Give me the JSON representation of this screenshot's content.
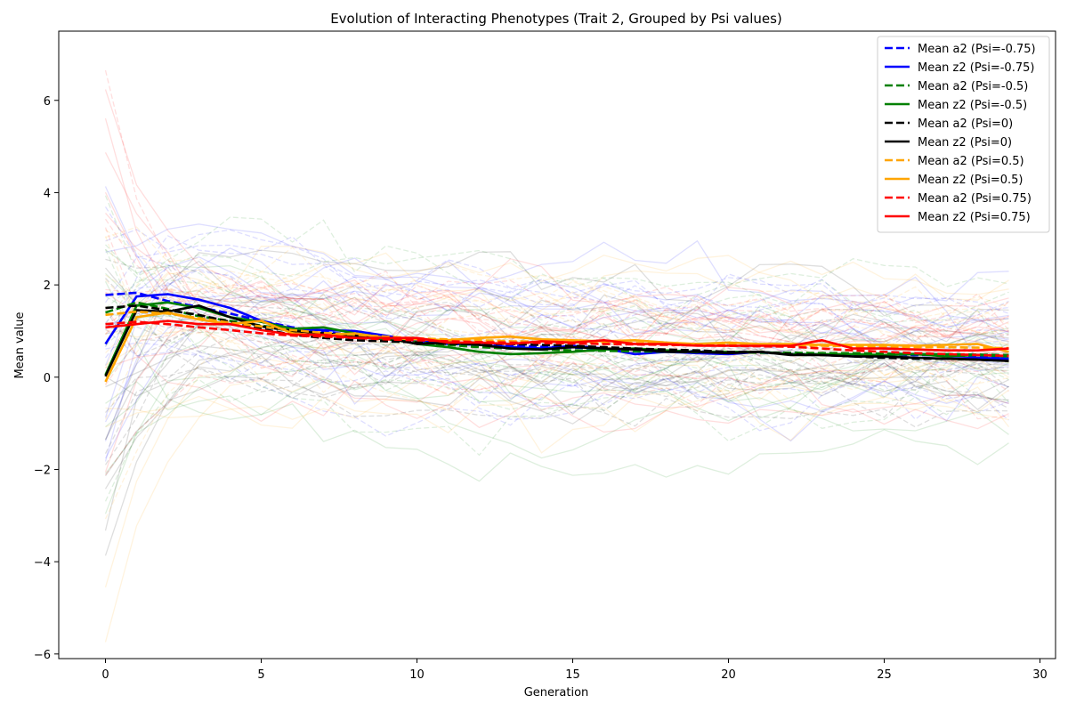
{
  "chart_data": {
    "type": "line",
    "title": "Evolution of Interacting Phenotypes (Trait 2, Grouped by Psi values)",
    "xlabel": "Generation",
    "ylabel": "Mean value",
    "xlim": [
      -1.5,
      30.5
    ],
    "ylim": [
      -6.1,
      7.5
    ],
    "xticks": [
      0,
      5,
      10,
      15,
      20,
      25,
      30
    ],
    "xtick_labels": [
      "0",
      "5",
      "10",
      "15",
      "20",
      "25",
      "30"
    ],
    "yticks": [
      -6,
      -4,
      -2,
      0,
      2,
      4,
      6
    ],
    "ytick_labels": [
      "−6",
      "−4",
      "−2",
      "0",
      "2",
      "4",
      "6"
    ],
    "grid": false,
    "legend_position": "top-right",
    "x": [
      0,
      1,
      2,
      3,
      4,
      5,
      6,
      7,
      8,
      9,
      10,
      11,
      12,
      13,
      14,
      15,
      16,
      17,
      18,
      19,
      20,
      21,
      22,
      23,
      24,
      25,
      26,
      27,
      28,
      29
    ],
    "series": [
      {
        "name": "Mean a2 (Psi=-0.75)",
        "color": "#0000ff",
        "style": "dashed",
        "values": [
          1.78,
          1.83,
          1.65,
          1.52,
          1.38,
          1.22,
          1.08,
          0.98,
          0.92,
          0.86,
          0.8,
          0.76,
          0.72,
          0.69,
          0.66,
          0.64,
          0.62,
          0.6,
          0.58,
          0.56,
          0.54,
          0.53,
          0.52,
          0.51,
          0.5,
          0.49,
          0.48,
          0.47,
          0.46,
          0.45
        ]
      },
      {
        "name": "Mean z2 (Psi=-0.75)",
        "color": "#0000ff",
        "style": "solid",
        "values": [
          0.72,
          1.75,
          1.8,
          1.68,
          1.5,
          1.22,
          1.05,
          1.02,
          1.0,
          0.9,
          0.78,
          0.72,
          0.7,
          0.65,
          0.62,
          0.68,
          0.62,
          0.5,
          0.55,
          0.52,
          0.5,
          0.55,
          0.5,
          0.5,
          0.45,
          0.45,
          0.42,
          0.4,
          0.42,
          0.4
        ]
      },
      {
        "name": "Mean a2 (Psi=-0.5)",
        "color": "#008000",
        "style": "dashed",
        "values": [
          1.4,
          1.62,
          1.48,
          1.32,
          1.22,
          1.12,
          1.02,
          0.95,
          0.88,
          0.82,
          0.76,
          0.7,
          0.65,
          0.62,
          0.6,
          0.58,
          0.57,
          0.56,
          0.55,
          0.54,
          0.54,
          0.53,
          0.53,
          0.52,
          0.52,
          0.51,
          0.5,
          0.5,
          0.49,
          0.48
        ]
      },
      {
        "name": "Mean z2 (Psi=-0.5)",
        "color": "#008000",
        "style": "solid",
        "values": [
          0.05,
          1.55,
          1.62,
          1.5,
          1.3,
          1.2,
          1.05,
          1.08,
          0.95,
          0.85,
          0.72,
          0.65,
          0.55,
          0.5,
          0.52,
          0.55,
          0.6,
          0.62,
          0.58,
          0.55,
          0.55,
          0.55,
          0.5,
          0.5,
          0.5,
          0.48,
          0.5,
          0.45,
          0.48,
          0.45
        ]
      },
      {
        "name": "Mean a2 (Psi=0)",
        "color": "#000000",
        "style": "dashed",
        "values": [
          1.5,
          1.55,
          1.45,
          1.35,
          1.2,
          1.05,
          0.92,
          0.85,
          0.8,
          0.78,
          0.75,
          0.72,
          0.72,
          0.72,
          0.7,
          0.68,
          0.65,
          0.62,
          0.6,
          0.58,
          0.55,
          0.55,
          0.5,
          0.48,
          0.45,
          0.42,
          0.4,
          0.4,
          0.38,
          0.35
        ]
      },
      {
        "name": "Mean z2 (Psi=0)",
        "color": "#000000",
        "style": "solid",
        "values": [
          0.02,
          1.45,
          1.42,
          1.55,
          1.3,
          1.1,
          1.0,
          0.95,
          0.9,
          0.85,
          0.72,
          0.75,
          0.7,
          0.62,
          0.6,
          0.65,
          0.62,
          0.6,
          0.55,
          0.55,
          0.52,
          0.55,
          0.48,
          0.48,
          0.45,
          0.45,
          0.42,
          0.4,
          0.38,
          0.35
        ]
      },
      {
        "name": "Mean a2 (Psi=0.5)",
        "color": "#ffa500",
        "style": "dashed",
        "values": [
          1.35,
          1.42,
          1.38,
          1.28,
          1.18,
          1.1,
          1.02,
          0.96,
          0.92,
          0.88,
          0.84,
          0.82,
          0.8,
          0.78,
          0.77,
          0.76,
          0.75,
          0.74,
          0.73,
          0.72,
          0.71,
          0.7,
          0.69,
          0.68,
          0.67,
          0.66,
          0.65,
          0.65,
          0.64,
          0.63
        ]
      },
      {
        "name": "Mean z2 (Psi=0.5)",
        "color": "#ffa500",
        "style": "solid",
        "values": [
          -0.1,
          1.3,
          1.4,
          1.25,
          1.15,
          1.22,
          0.95,
          0.9,
          0.95,
          0.85,
          0.82,
          0.8,
          0.85,
          0.88,
          0.82,
          0.8,
          0.78,
          0.8,
          0.75,
          0.72,
          0.75,
          0.72,
          0.72,
          0.7,
          0.7,
          0.7,
          0.68,
          0.7,
          0.72,
          0.55
        ]
      },
      {
        "name": "Mean a2 (Psi=0.75)",
        "color": "#ff0000",
        "style": "dashed",
        "values": [
          1.15,
          1.2,
          1.15,
          1.08,
          1.02,
          0.95,
          0.9,
          0.88,
          0.85,
          0.82,
          0.8,
          0.78,
          0.76,
          0.75,
          0.74,
          0.73,
          0.72,
          0.71,
          0.7,
          0.69,
          0.68,
          0.67,
          0.66,
          0.62,
          0.58,
          0.55,
          0.52,
          0.5,
          0.48,
          0.46
        ]
      },
      {
        "name": "Mean z2 (Psi=0.75)",
        "color": "#ff0000",
        "style": "solid",
        "values": [
          1.08,
          1.15,
          1.22,
          1.15,
          1.15,
          1.02,
          0.92,
          0.92,
          0.85,
          0.85,
          0.85,
          0.75,
          0.75,
          0.72,
          0.78,
          0.75,
          0.8,
          0.72,
          0.72,
          0.68,
          0.68,
          0.68,
          0.68,
          0.8,
          0.62,
          0.62,
          0.6,
          0.58,
          0.58,
          0.62
        ]
      }
    ]
  }
}
